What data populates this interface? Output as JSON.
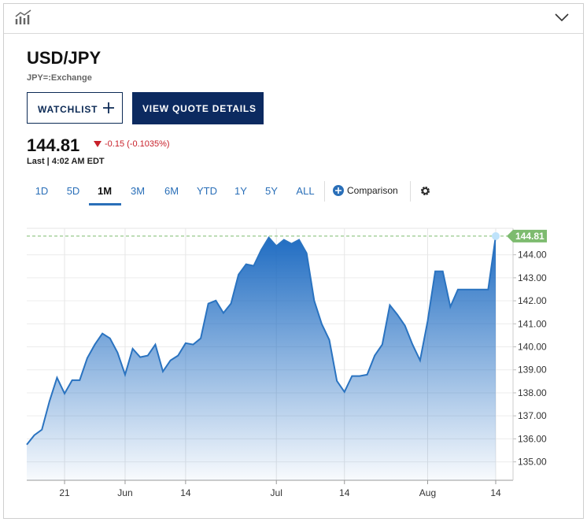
{
  "header": {
    "symbol": "USD/JPY",
    "exchange": "JPY=:Exchange"
  },
  "buttons": {
    "watchlist": "WATCHLIST",
    "quote_details": "VIEW QUOTE DETAILS"
  },
  "quote": {
    "price": "144.81",
    "change": "-0.15 (-0.1035%)",
    "last_label": "Last",
    "time": "4:02 AM EDT"
  },
  "ranges": [
    "1D",
    "5D",
    "1M",
    "3M",
    "6M",
    "YTD",
    "1Y",
    "5Y",
    "ALL"
  ],
  "comparison": "Comparison",
  "chart_data": {
    "type": "area",
    "categories": [
      null,
      null,
      null,
      null,
      null,
      "21",
      null,
      null,
      null,
      null,
      null,
      null,
      null,
      "Jun",
      null,
      null,
      null,
      null,
      null,
      null,
      null,
      "14",
      null,
      null,
      null,
      null,
      null,
      null,
      null,
      null,
      null,
      null,
      null,
      "Jul",
      null,
      null,
      null,
      null,
      null,
      null,
      null,
      null,
      "14",
      null,
      null,
      null,
      null,
      null,
      null,
      null,
      null,
      null,
      null,
      "Aug",
      null,
      null,
      null,
      null,
      null,
      null,
      null,
      null,
      "14"
    ],
    "series": [
      {
        "color": "#2a73c0",
        "values": [
          135.75,
          136.16,
          136.4,
          137.63,
          138.66,
          137.97,
          138.55,
          138.55,
          139.51,
          140.1,
          140.58,
          140.37,
          139.75,
          138.79,
          139.92,
          139.55,
          139.62,
          140.1,
          138.93,
          139.41,
          139.62,
          140.16,
          140.1,
          140.37,
          141.88,
          142.01,
          141.47,
          141.88,
          143.14,
          143.59,
          143.52,
          144.21,
          144.75,
          144.38,
          144.65,
          144.48,
          144.65,
          144.07,
          142.01,
          140.99,
          140.3,
          138.52,
          138.04,
          138.73,
          138.73,
          138.79,
          139.62,
          140.1,
          141.81,
          141.4,
          140.92,
          140.1,
          139.41,
          141.12,
          143.28,
          143.28,
          141.74,
          142.49,
          142.49,
          142.49,
          142.49,
          142.49,
          144.81
        ]
      }
    ],
    "ylim": [
      134.2,
      145.15
    ],
    "yticks": [
      {
        "value": 135,
        "label": "135.00"
      },
      {
        "value": 136,
        "label": "136.00"
      },
      {
        "value": 137,
        "label": "137.00"
      },
      {
        "value": 138,
        "label": "138.00"
      },
      {
        "value": 139,
        "label": "139.00"
      },
      {
        "value": 140,
        "label": "140.00"
      },
      {
        "value": 141,
        "label": "141.00"
      },
      {
        "value": 142,
        "label": "142.00"
      },
      {
        "value": 143,
        "label": "143.00"
      },
      {
        "value": 144,
        "label": "144.00"
      }
    ],
    "grid": true,
    "last_color": "#7dbb6f"
  }
}
